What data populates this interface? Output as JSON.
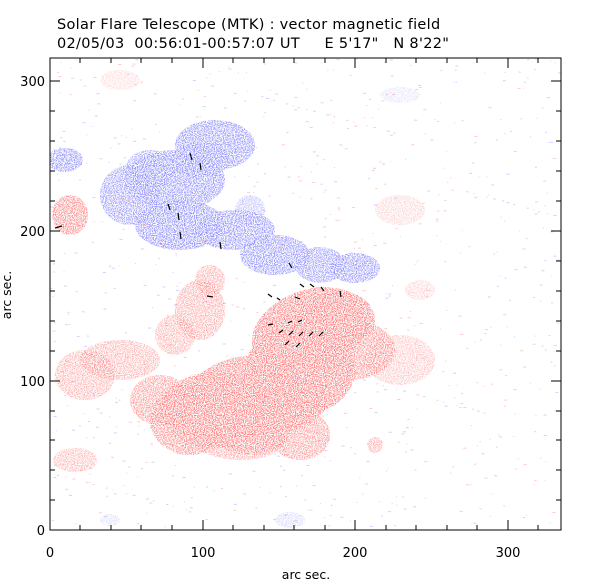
{
  "title": "Solar Flare Telescope (MTK) : vector magnetic field",
  "subtitle": "02/05/03  00:56:01-00:57:07 UT     E 5'17\"   N 8'22\"",
  "x_axis": {
    "label": "arc sec.",
    "ticks": [
      "0",
      "100",
      "200",
      "300"
    ]
  },
  "y_axis": {
    "label": "arc sec.",
    "ticks": [
      "0",
      "100",
      "200",
      "300"
    ]
  },
  "colors": {
    "positive_polarity": "#ff6a6a",
    "negative_polarity": "#7a7aff",
    "vectors": "#000000"
  }
}
